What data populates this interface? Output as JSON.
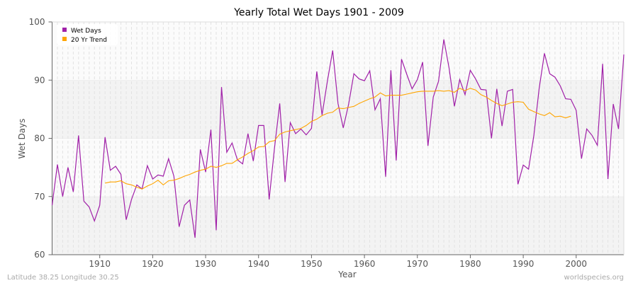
{
  "chart_data": {
    "type": "line",
    "title": "Yearly Total Wet Days 1901 - 2009",
    "xlabel": "Year",
    "ylabel": "Wet Days",
    "xlim": [
      1901,
      2009
    ],
    "ylim": [
      60,
      100
    ],
    "xticks": [
      1910,
      1920,
      1930,
      1940,
      1950,
      1960,
      1970,
      1980,
      1990,
      2000
    ],
    "yticks": [
      60,
      70,
      80,
      90,
      100
    ],
    "grid": true,
    "legend_position": "top-left",
    "series": [
      {
        "name": "Wet Days",
        "color": "#a020a8",
        "start_year": 1901,
        "values": [
          68.5,
          75.5,
          70,
          75,
          70.8,
          80.5,
          69.2,
          68.2,
          65.8,
          68.5,
          80.2,
          74.5,
          75.2,
          73.8,
          66,
          69.5,
          72,
          71.3,
          75.3,
          73,
          73.7,
          73.5,
          76.5,
          73.5,
          64.8,
          68.5,
          69.4,
          62.9,
          78.1,
          74.2,
          81.5,
          64.2,
          88.8,
          77.6,
          79.2,
          76.3,
          75.6,
          80.8,
          76.1,
          82.2,
          82.2,
          69.5,
          78.2,
          86,
          72.5,
          82.7,
          80.8,
          81.6,
          80.6,
          81.7,
          91.5,
          84,
          89.8,
          95.1,
          86,
          81.8,
          85.8,
          91.1,
          90.2,
          89.9,
          91.6,
          84.9,
          86.8,
          73.4,
          91.7,
          76.2,
          93.6,
          91,
          88.5,
          90.1,
          93.1,
          78.7,
          87.1,
          89.8,
          97,
          92,
          85.5,
          90.1,
          87.5,
          91.7,
          90.2,
          88.4,
          88.3,
          80,
          88.5,
          82.1,
          88.1,
          88.4,
          72.1,
          75.4,
          74.7,
          80.5,
          88.5,
          94.6,
          91.1,
          90.5,
          89,
          86.8,
          86.7,
          84.8,
          76.5,
          81.6,
          80.5,
          78.8,
          92.8,
          73,
          85.9,
          81.6,
          94.4
        ]
      },
      {
        "name": "20 Yr Trend",
        "color": "#ffa500",
        "start_year": 1911,
        "values": [
          72.3,
          72.5,
          72.5,
          72.7,
          72.2,
          72,
          71.6,
          71.3,
          71.8,
          72.2,
          72.8,
          72,
          72.7,
          72.8,
          73.1,
          73.5,
          73.8,
          74.2,
          74.5,
          74.7,
          75.2,
          75,
          75.3,
          75.7,
          75.7,
          76.3,
          76.8,
          77.4,
          77.9,
          78.5,
          78.6,
          79.4,
          79.6,
          80.7,
          81.1,
          81.3,
          81.5,
          81.7,
          82.2,
          82.9,
          83.3,
          83.9,
          84.3,
          84.5,
          85.2,
          85.1,
          85.3,
          85.5,
          86,
          86.4,
          86.8,
          87.1,
          87.8,
          87.3,
          87.4,
          87.4,
          87.4,
          87.6,
          87.8,
          88,
          88.1,
          88.1,
          88.1,
          88.2,
          88.1,
          88.2,
          87.9,
          88.6,
          88.2,
          88.6,
          88.3,
          87.5,
          87.1,
          86.5,
          86,
          85.6,
          85.9,
          86.2,
          86.3,
          86.2,
          85,
          84.6,
          84.2,
          83.9,
          84.4,
          83.7,
          83.8,
          83.5,
          83.8
        ]
      }
    ]
  },
  "footer": {
    "location": "Latitude 38.25 Longitude 30.25",
    "source": "worldspecies.org"
  }
}
